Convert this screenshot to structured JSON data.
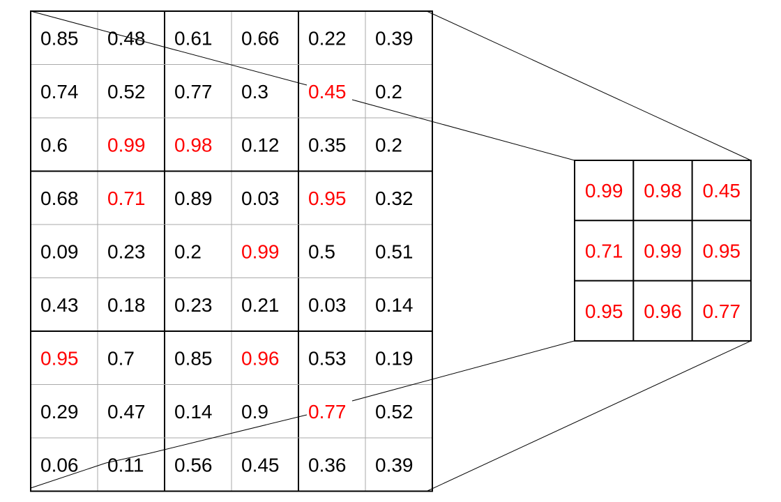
{
  "input_grid": {
    "rows": [
      [
        "0.85",
        "0.48",
        "0.61",
        "0.66",
        "0.22",
        "0.39"
      ],
      [
        "0.74",
        "0.52",
        "0.77",
        "0.3",
        "0.45",
        "0.2"
      ],
      [
        "0.6",
        "0.99",
        "0.98",
        "0.12",
        "0.35",
        "0.2"
      ],
      [
        "0.68",
        "0.71",
        "0.89",
        "0.03",
        "0.95",
        "0.32"
      ],
      [
        "0.09",
        "0.23",
        "0.2",
        "0.99",
        "0.5",
        "0.51"
      ],
      [
        "0.43",
        "0.18",
        "0.23",
        "0.21",
        "0.03",
        "0.14"
      ],
      [
        "0.95",
        "0.7",
        "0.85",
        "0.96",
        "0.53",
        "0.19"
      ],
      [
        "0.29",
        "0.47",
        "0.14",
        "0.9",
        "0.77",
        "0.52"
      ],
      [
        "0.06",
        "0.11",
        "0.56",
        "0.45",
        "0.36",
        "0.39"
      ]
    ],
    "highlighted": [
      [
        1,
        4
      ],
      [
        2,
        1
      ],
      [
        2,
        2
      ],
      [
        3,
        1
      ],
      [
        3,
        4
      ],
      [
        4,
        3
      ],
      [
        6,
        0
      ],
      [
        6,
        3
      ],
      [
        7,
        4
      ]
    ],
    "pool_block": {
      "rows": 3,
      "cols": 2
    }
  },
  "output_grid": {
    "rows": [
      [
        "0.99",
        "0.98",
        "0.45"
      ],
      [
        "0.71",
        "0.99",
        "0.95"
      ],
      [
        "0.95",
        "0.96",
        "0.77"
      ]
    ]
  },
  "colors": {
    "text": "#000000",
    "highlight": "#ff0000",
    "thin_line": "#aaaaaa",
    "thick_line": "#000000"
  }
}
